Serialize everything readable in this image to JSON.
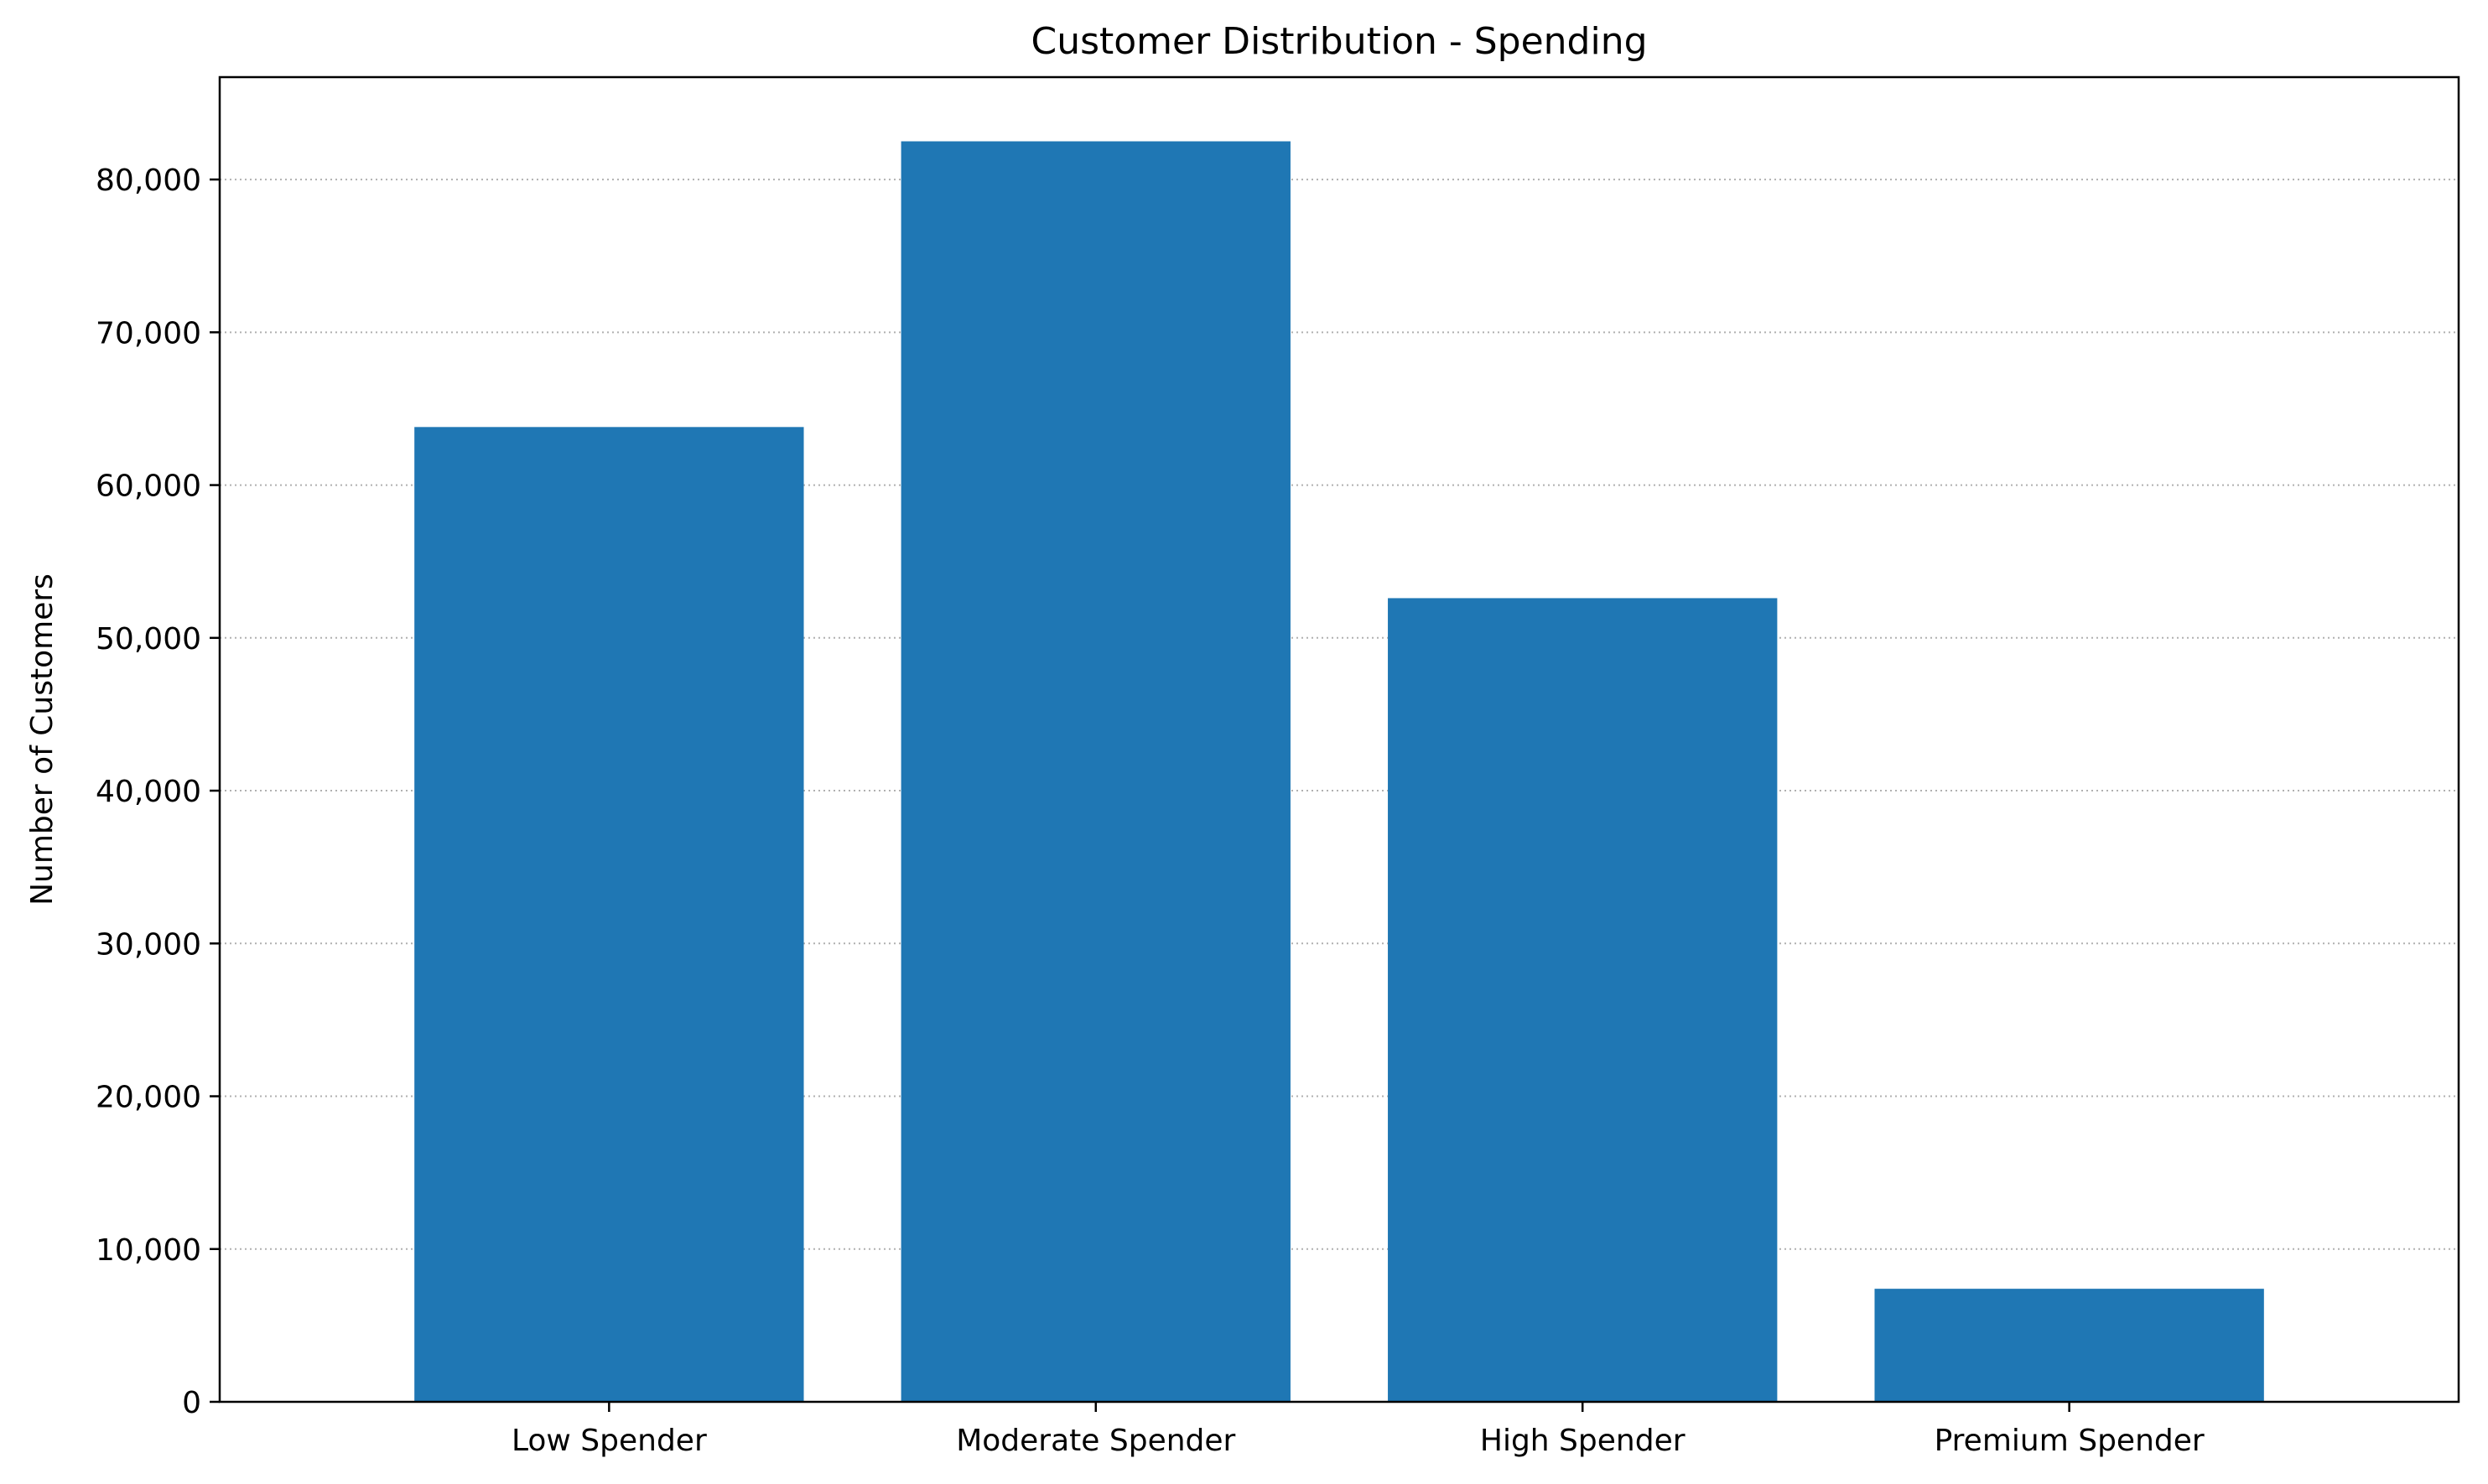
{
  "chart_data": {
    "type": "bar",
    "title": "Customer Distribution - Spending",
    "xlabel": "",
    "ylabel": "Number of Customers",
    "categories": [
      "Low Spender",
      "Moderate Spender",
      "High Spender",
      "Premium Spender"
    ],
    "values": [
      63800,
      82500,
      52600,
      7400
    ],
    "ylim": [
      0,
      86700
    ],
    "yticks": [
      0,
      10000,
      20000,
      30000,
      40000,
      50000,
      60000,
      70000,
      80000
    ],
    "ytick_labels": [
      "0",
      "10,000",
      "20,000",
      "30,000",
      "40,000",
      "50,000",
      "60,000",
      "70,000",
      "80,000"
    ],
    "grid": "y-dotted",
    "bar_color": "#1f77b4",
    "gridline_color": "#b0b0b0"
  }
}
